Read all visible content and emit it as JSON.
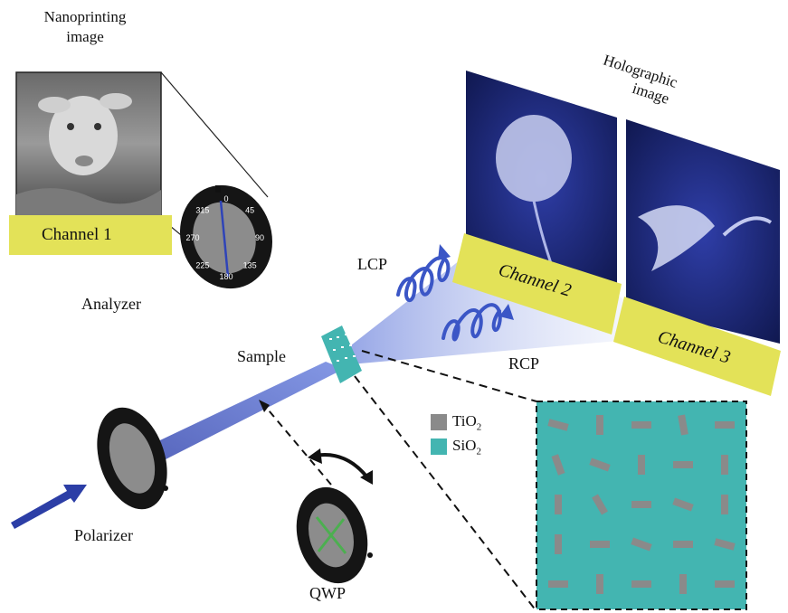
{
  "labels": {
    "nanoprinting_line1": "Nanoprinting",
    "nanoprinting_line2": "image",
    "holographic_line1": "Holographic",
    "holographic_line2": "image",
    "channel1": "Channel 1",
    "channel2": "Channel 2",
    "channel3": "Channel 3",
    "analyzer": "Analyzer",
    "sample": "Sample",
    "lcp": "LCP",
    "rcp": "RCP",
    "polarizer": "Polarizer",
    "qwp": "QWP"
  },
  "legend": [
    {
      "formula": "TiO",
      "sub": "2",
      "color": "#8a8a8a"
    },
    {
      "formula": "SiO",
      "sub": "2",
      "color": "#43b5b1"
    }
  ],
  "dial_ticks": [
    "0",
    "45",
    "90",
    "135",
    "180",
    "225",
    "270",
    "315"
  ],
  "colors": {
    "channel_bar": "#e3e258",
    "beam": "#3b56c6",
    "substrate": "#43b5b1",
    "nanopillar": "#8a8a8a",
    "hologram_bg": "#1f2b8c"
  }
}
